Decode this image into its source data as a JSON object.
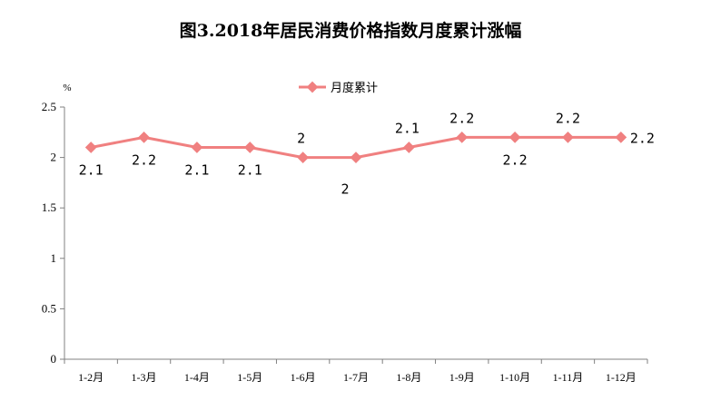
{
  "chart_data": {
    "type": "line",
    "title": "图3.2018年居民消费价格指数月度累计涨幅",
    "unit_label": "%",
    "categories": [
      "1-2月",
      "1-3月",
      "1-4月",
      "1-5月",
      "1-6月",
      "1-7月",
      "1-8月",
      "1-9月",
      "1-10月",
      "1-11月",
      "1-12月"
    ],
    "series": [
      {
        "name": "月度累计",
        "values": [
          2.1,
          2.2,
          2.1,
          2.1,
          2.0,
          2.0,
          2.1,
          2.2,
          2.2,
          2.2,
          2.2
        ],
        "data_labels": [
          "2.1",
          "2.2",
          "2.1",
          "2.1",
          "2",
          "2",
          "2.1",
          "2.2",
          "2.2",
          "2.2",
          "2.2"
        ],
        "color": "#F08080"
      }
    ],
    "ylim": [
      0,
      2.5
    ],
    "yticks": [
      "0",
      "0.5",
      "1",
      "1.5",
      "2",
      "2.5"
    ],
    "grid": false,
    "legend_position": "top-center"
  }
}
